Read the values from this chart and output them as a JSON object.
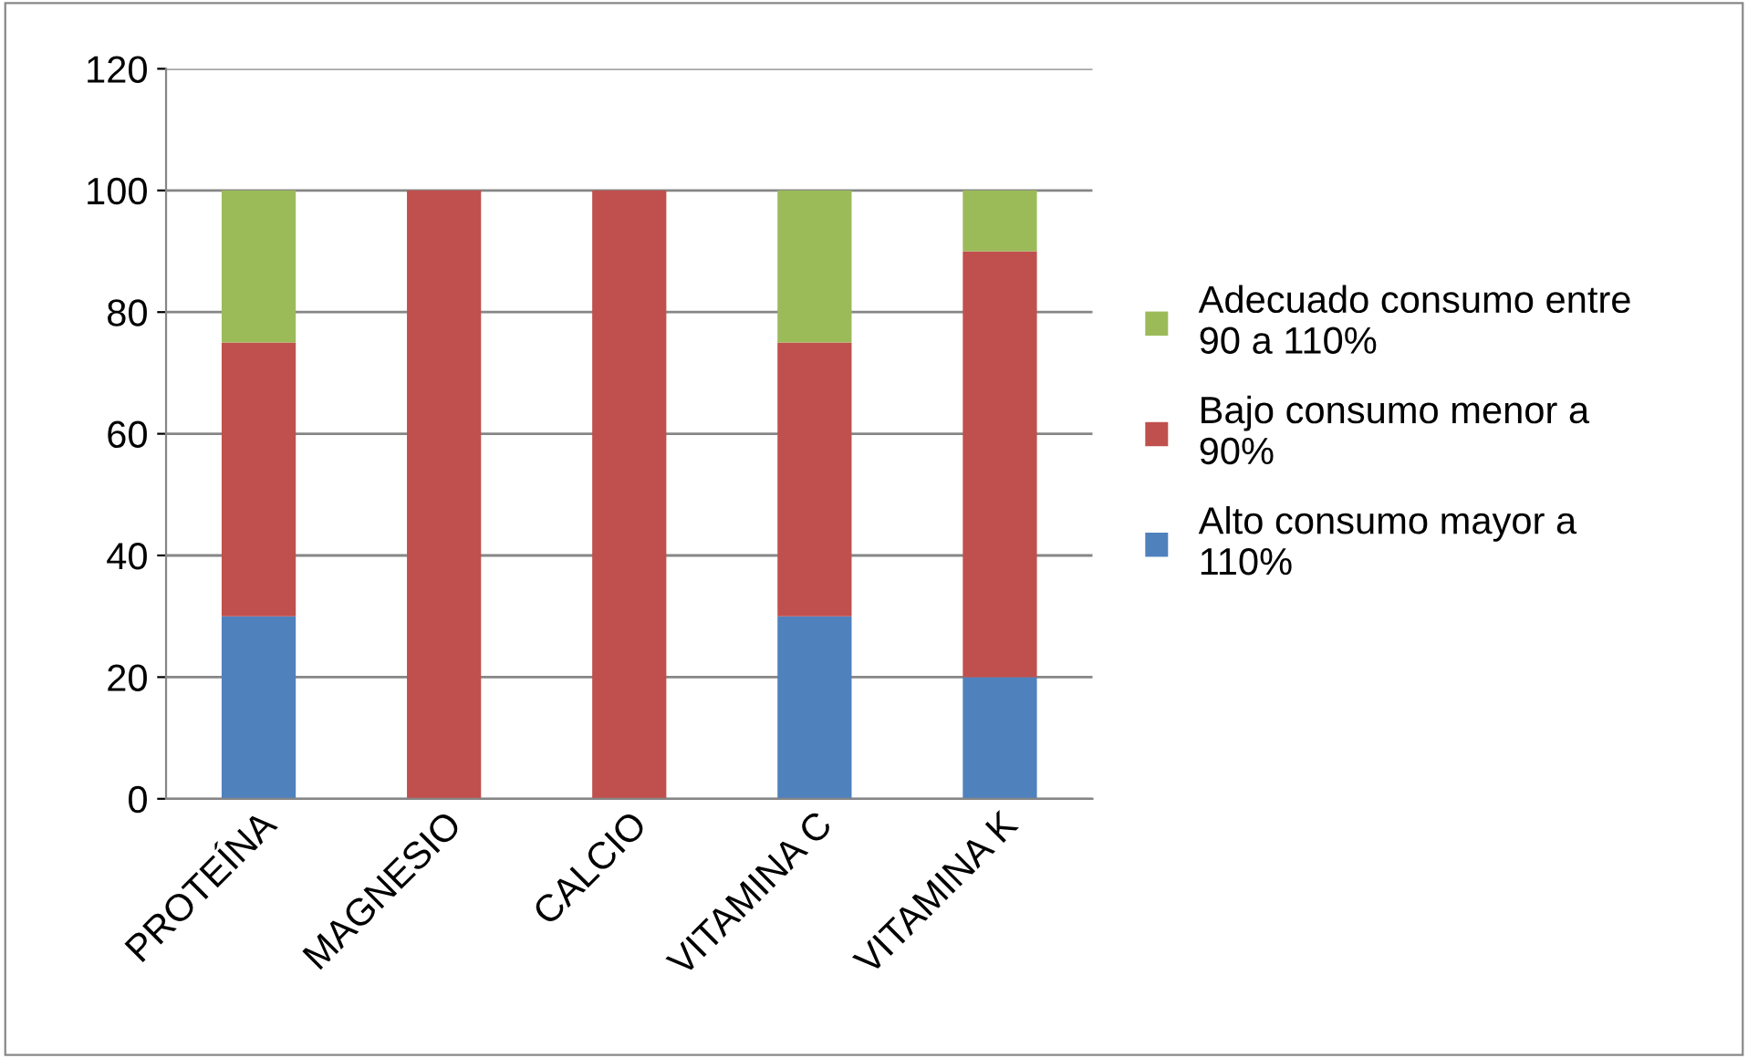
{
  "chart_data": {
    "type": "bar",
    "stacked": true,
    "categories": [
      "PROTEÍNA",
      "MAGNESIO",
      "CALCIO",
      "VITAMINA C",
      "VITAMINA K"
    ],
    "series": [
      {
        "name": "Alto consumo mayor a\n110%",
        "color": "#4f81bd",
        "values": [
          30,
          0,
          0,
          30,
          20
        ]
      },
      {
        "name": "Bajo consumo menor a\n90%",
        "color": "#c0504d",
        "values": [
          45,
          100,
          100,
          45,
          70
        ]
      },
      {
        "name": "Adecuado consumo entre\n90 a 110%",
        "color": "#9bbb59",
        "values": [
          25,
          0,
          0,
          25,
          10
        ]
      }
    ],
    "ylim": [
      0,
      120
    ],
    "yticks": [
      0,
      20,
      40,
      60,
      80,
      100,
      120
    ],
    "grid": "y",
    "legend": "right"
  }
}
